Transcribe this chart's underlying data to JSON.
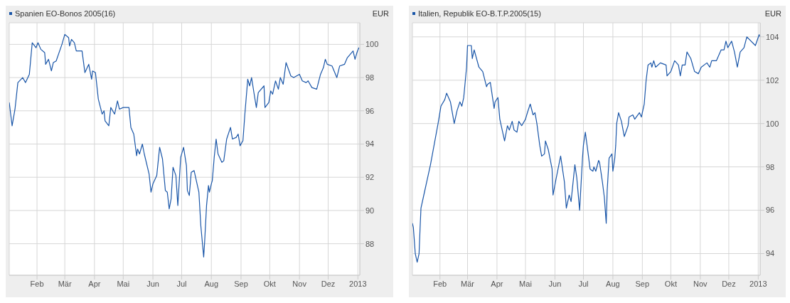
{
  "chart_data": [
    {
      "type": "line",
      "title": "Spanien EO-Bonos 2005(16)",
      "ylabel": "EUR",
      "grid": true,
      "marker": "none",
      "x": [
        "2012-01-03",
        "2012-01-06",
        "2012-01-09",
        "2012-01-12",
        "2012-01-17",
        "2012-01-20",
        "2012-01-24",
        "2012-01-27",
        "2012-01-31",
        "2012-02-02",
        "2012-02-05",
        "2012-02-09",
        "2012-02-10",
        "2012-02-13",
        "2012-02-16",
        "2012-02-18",
        "2012-02-21",
        "2012-02-27",
        "2012-03-01",
        "2012-03-05",
        "2012-03-06",
        "2012-03-08",
        "2012-03-11",
        "2012-03-13",
        "2012-03-19",
        "2012-03-22",
        "2012-03-26",
        "2012-03-29",
        "2012-03-30",
        "2012-04-02",
        "2012-04-05",
        "2012-04-09",
        "2012-04-11",
        "2012-04-12",
        "2012-04-16",
        "2012-04-18",
        "2012-04-22",
        "2012-04-25",
        "2012-04-27",
        "2012-05-01",
        "2012-05-07",
        "2012-05-09",
        "2012-05-12",
        "2012-05-15",
        "2012-05-16",
        "2012-05-18",
        "2012-05-21",
        "2012-05-23",
        "2012-05-28",
        "2012-05-30",
        "2012-06-01",
        "2012-06-05",
        "2012-06-08",
        "2012-06-11",
        "2012-06-14",
        "2012-06-16",
        "2012-06-18",
        "2012-06-20",
        "2012-06-22",
        "2012-06-25",
        "2012-06-27",
        "2012-06-30",
        "2012-07-03",
        "2012-07-06",
        "2012-07-07",
        "2012-07-09",
        "2012-07-11",
        "2012-07-14",
        "2012-07-19",
        "2012-07-21",
        "2012-07-24",
        "2012-07-25",
        "2012-07-27",
        "2012-07-29",
        "2012-07-30",
        "2012-08-01",
        "2012-08-02",
        "2012-08-04",
        "2012-08-06",
        "2012-08-08",
        "2012-08-12",
        "2012-08-14",
        "2012-08-17",
        "2012-08-21",
        "2012-08-23",
        "2012-08-27",
        "2012-08-29",
        "2012-08-31",
        "2012-09-03",
        "2012-09-05",
        "2012-09-08",
        "2012-09-10",
        "2012-09-12",
        "2012-09-15",
        "2012-09-17",
        "2012-09-19",
        "2012-09-25",
        "2012-09-26",
        "2012-09-30",
        "2012-10-02",
        "2012-10-04",
        "2012-10-07",
        "2012-10-10",
        "2012-10-12",
        "2012-10-15",
        "2012-10-18",
        "2012-10-23",
        "2012-10-26",
        "2012-11-01",
        "2012-11-04",
        "2012-11-08",
        "2012-11-10",
        "2012-11-14",
        "2012-11-19",
        "2012-11-23",
        "2012-11-26",
        "2012-11-28",
        "2012-11-30",
        "2012-12-05",
        "2012-12-10",
        "2012-12-13",
        "2012-12-18",
        "2012-12-21",
        "2012-12-27",
        "2012-12-29",
        "2012-12-31",
        "2013-01-02"
      ],
      "series": [
        {
          "color": "#1a56a8",
          "values": [
            96.5,
            95.1,
            96.1,
            97.7,
            98.0,
            97.7,
            98.2,
            100.1,
            99.8,
            100.1,
            99.7,
            99.5,
            98.8,
            99.1,
            98.4,
            98.9,
            99.0,
            100.0,
            100.6,
            100.4,
            99.9,
            100.3,
            100.1,
            99.6,
            99.6,
            98.3,
            98.8,
            97.9,
            98.4,
            98.3,
            96.7,
            95.8,
            96.0,
            95.4,
            95.1,
            96.2,
            95.8,
            96.6,
            96.1,
            96.2,
            96.2,
            95.0,
            94.6,
            93.3,
            93.7,
            93.4,
            94.0,
            93.4,
            92.2,
            91.1,
            91.6,
            92.1,
            93.8,
            93.1,
            91.2,
            91.1,
            90.1,
            90.7,
            92.6,
            92.1,
            90.3,
            93.2,
            93.8,
            92.7,
            91.2,
            90.9,
            92.3,
            92.4,
            91.1,
            89.1,
            87.2,
            88.1,
            90.3,
            91.5,
            91.1,
            91.6,
            91.8,
            93.2,
            94.3,
            93.4,
            92.9,
            93.0,
            94.3,
            95.0,
            94.3,
            94.4,
            94.6,
            93.9,
            94.2,
            95.8,
            97.9,
            97.5,
            98.0,
            96.9,
            96.2,
            97.1,
            97.5,
            96.2,
            96.5,
            97.2,
            97.0,
            97.8,
            97.3,
            98.0,
            97.6,
            98.9,
            98.1,
            98.0,
            98.2,
            97.8,
            97.7,
            97.8,
            97.4,
            97.3,
            98.2,
            98.6,
            99.1,
            98.8,
            98.7,
            98.0,
            98.7,
            98.8,
            99.2,
            99.6,
            99.1,
            99.5,
            99.8
          ]
        }
      ],
      "xlim": [
        "2012-01-03",
        "2013-01-03"
      ],
      "ylim": [
        86.1,
        101.3
      ],
      "yticks": [
        88,
        90,
        92,
        94,
        96,
        98,
        100
      ],
      "xticks": [
        {
          "value": "2012-02-01",
          "label": "Feb"
        },
        {
          "value": "2012-03-01",
          "label": "Mär"
        },
        {
          "value": "2012-04-01",
          "label": "Apr"
        },
        {
          "value": "2012-05-01",
          "label": "Mai"
        },
        {
          "value": "2012-06-01",
          "label": "Jun"
        },
        {
          "value": "2012-07-01",
          "label": "Jul"
        },
        {
          "value": "2012-08-01",
          "label": "Aug"
        },
        {
          "value": "2012-09-01",
          "label": "Sep"
        },
        {
          "value": "2012-10-01",
          "label": "Okt"
        },
        {
          "value": "2012-11-01",
          "label": "Nov"
        },
        {
          "value": "2012-12-01",
          "label": "Dez"
        },
        {
          "value": "2013-01-01",
          "label": "2013"
        }
      ]
    },
    {
      "type": "line",
      "title": "Italien, Republik EO-B.T.P.2005(15)",
      "ylabel": "EUR",
      "grid": true,
      "marker": "none",
      "x": [
        "2012-01-03",
        "2012-01-04",
        "2012-01-06",
        "2012-01-08",
        "2012-01-10",
        "2012-01-11",
        "2012-01-12",
        "2012-01-15",
        "2012-01-22",
        "2012-01-30",
        "2012-02-02",
        "2012-02-06",
        "2012-02-08",
        "2012-02-12",
        "2012-02-16",
        "2012-02-19",
        "2012-02-22",
        "2012-02-24",
        "2012-02-26",
        "2012-02-29",
        "2012-03-01",
        "2012-03-05",
        "2012-03-06",
        "2012-03-08",
        "2012-03-13",
        "2012-03-17",
        "2012-03-21",
        "2012-03-22",
        "2012-03-25",
        "2012-03-29",
        "2012-03-30",
        "2012-04-02",
        "2012-04-04",
        "2012-04-09",
        "2012-04-12",
        "2012-04-14",
        "2012-04-17",
        "2012-04-19",
        "2012-04-22",
        "2012-04-24",
        "2012-04-27",
        "2012-05-01",
        "2012-05-03",
        "2012-05-06",
        "2012-05-09",
        "2012-05-11",
        "2012-05-13",
        "2012-05-16",
        "2012-05-18",
        "2012-05-21",
        "2012-05-22",
        "2012-05-25",
        "2012-05-29",
        "2012-05-30",
        "2012-06-02",
        "2012-06-07",
        "2012-06-11",
        "2012-06-13",
        "2012-06-16",
        "2012-06-18",
        "2012-06-22",
        "2012-06-24",
        "2012-06-27",
        "2012-06-30",
        "2012-07-01",
        "2012-07-03",
        "2012-07-06",
        "2012-07-08",
        "2012-07-11",
        "2012-07-12",
        "2012-07-14",
        "2012-07-17",
        "2012-07-18",
        "2012-07-21",
        "2012-07-23",
        "2012-07-25",
        "2012-07-26",
        "2012-07-28",
        "2012-07-31",
        "2012-08-01",
        "2012-08-03",
        "2012-08-04",
        "2012-08-05",
        "2012-08-07",
        "2012-08-10",
        "2012-08-13",
        "2012-08-17",
        "2012-08-18",
        "2012-08-22",
        "2012-08-24",
        "2012-08-29",
        "2012-08-31",
        "2012-09-03",
        "2012-09-05",
        "2012-09-07",
        "2012-09-10",
        "2012-09-11",
        "2012-09-13",
        "2012-09-15",
        "2012-09-20",
        "2012-09-26",
        "2012-09-27",
        "2012-10-01",
        "2012-10-05",
        "2012-10-09",
        "2012-10-11",
        "2012-10-13",
        "2012-10-16",
        "2012-10-18",
        "2012-10-22",
        "2012-10-26",
        "2012-10-30",
        "2012-11-02",
        "2012-11-08",
        "2012-11-11",
        "2012-11-13",
        "2012-11-18",
        "2012-11-23",
        "2012-11-26",
        "2012-11-28",
        "2012-11-30",
        "2012-12-04",
        "2012-12-07",
        "2012-12-10",
        "2012-12-13",
        "2012-12-17",
        "2012-12-20",
        "2012-12-29",
        "2013-01-02",
        "2013-01-03"
      ],
      "series": [
        {
          "color": "#1a56a8",
          "values": [
            95.4,
            95.2,
            94.0,
            93.6,
            94.0,
            95.1,
            96.1,
            96.7,
            98.1,
            100.0,
            100.8,
            101.1,
            101.4,
            101.0,
            100.0,
            100.6,
            101.0,
            100.8,
            101.2,
            102.6,
            103.6,
            103.6,
            103.0,
            103.4,
            102.6,
            102.4,
            101.7,
            101.8,
            101.9,
            100.7,
            101.0,
            101.2,
            100.2,
            99.2,
            99.9,
            99.7,
            100.1,
            99.7,
            99.6,
            100.1,
            99.9,
            100.2,
            100.5,
            100.9,
            100.4,
            100.5,
            100.0,
            99.0,
            98.5,
            98.6,
            99.2,
            98.8,
            97.9,
            96.7,
            97.4,
            98.5,
            97.3,
            96.1,
            96.7,
            96.4,
            98.1,
            97.5,
            96.0,
            98.4,
            99.0,
            99.6,
            98.6,
            97.9,
            97.8,
            98.0,
            97.8,
            98.3,
            98.2,
            97.3,
            96.6,
            95.4,
            96.9,
            98.4,
            98.6,
            97.8,
            98.4,
            99.0,
            100.0,
            100.5,
            100.1,
            99.4,
            99.9,
            100.3,
            100.4,
            100.2,
            100.5,
            100.3,
            100.9,
            102.0,
            102.7,
            102.8,
            102.6,
            102.9,
            102.6,
            102.8,
            102.7,
            102.2,
            102.4,
            102.9,
            102.7,
            102.2,
            102.7,
            102.7,
            103.3,
            103.0,
            102.4,
            102.3,
            102.6,
            102.8,
            102.6,
            102.9,
            102.9,
            103.4,
            103.4,
            103.8,
            103.5,
            103.8,
            103.3,
            102.6,
            103.3,
            103.5,
            104.0,
            103.6,
            104.1,
            104.0
          ]
        }
      ],
      "xlim": [
        "2012-01-03",
        "2013-01-03"
      ],
      "ylim": [
        93,
        104.65
      ],
      "yticks": [
        94,
        96,
        98,
        100,
        102,
        104
      ],
      "xticks": [
        {
          "value": "2012-02-01",
          "label": "Feb"
        },
        {
          "value": "2012-03-01",
          "label": "Mär"
        },
        {
          "value": "2012-04-01",
          "label": "Apr"
        },
        {
          "value": "2012-05-01",
          "label": "Mai"
        },
        {
          "value": "2012-06-01",
          "label": "Jun"
        },
        {
          "value": "2012-07-01",
          "label": "Jul"
        },
        {
          "value": "2012-08-01",
          "label": "Aug"
        },
        {
          "value": "2012-09-01",
          "label": "Sep"
        },
        {
          "value": "2012-10-01",
          "label": "Okt"
        },
        {
          "value": "2012-11-01",
          "label": "Nov"
        },
        {
          "value": "2012-12-01",
          "label": "Dez"
        },
        {
          "value": "2013-01-01",
          "label": "2013"
        }
      ]
    }
  ]
}
